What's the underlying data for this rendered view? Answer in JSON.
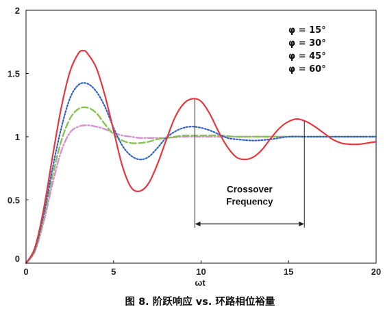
{
  "chart_data": {
    "type": "line",
    "xlabel": "ωt",
    "ylabel": "",
    "xlim": [
      0,
      20
    ],
    "ylim": [
      0,
      2
    ],
    "x_ticks": [
      "0",
      "5",
      "10",
      "15",
      "20"
    ],
    "y_ticks": [
      "0",
      "0.5",
      "1",
      "1.5",
      "2"
    ],
    "caption": "图 8. 阶跃响应 vs. 环路相位裕量",
    "legend": [
      "φ = 15°",
      "φ = 30°",
      "φ = 45°",
      "φ = 60°"
    ],
    "legend_position": "top-right",
    "grid": false,
    "series": [
      {
        "name": "φ = 15°",
        "color": "#e8363f",
        "dash": "solid",
        "x": [
          0,
          0.5,
          1,
          1.5,
          2,
          2.5,
          3,
          3.3,
          3.5,
          4,
          4.5,
          5,
          5.5,
          6,
          6.5,
          7,
          7.5,
          8,
          8.5,
          9,
          9.5,
          10,
          10.5,
          11,
          11.5,
          12,
          12.5,
          13,
          13.5,
          14,
          14.5,
          15,
          15.5,
          16,
          16.5,
          17,
          17.5,
          18,
          18.5,
          19,
          19.5,
          20
        ],
        "y": [
          0,
          0.12,
          0.42,
          0.83,
          1.22,
          1.51,
          1.66,
          1.68,
          1.66,
          1.55,
          1.33,
          1.05,
          0.77,
          0.6,
          0.57,
          0.63,
          0.78,
          0.97,
          1.15,
          1.26,
          1.3,
          1.28,
          1.18,
          1.04,
          0.92,
          0.84,
          0.82,
          0.84,
          0.9,
          0.99,
          1.07,
          1.12,
          1.14,
          1.12,
          1.08,
          1.03,
          0.98,
          0.95,
          0.94,
          0.94,
          0.95,
          0.96
        ]
      },
      {
        "name": "φ = 30°",
        "color": "#2f61c9",
        "dash": "dotted",
        "x": [
          0,
          0.5,
          1,
          1.5,
          2,
          2.5,
          3,
          3.5,
          4,
          4.5,
          5,
          5.5,
          6,
          6.5,
          7,
          7.5,
          8,
          8.5,
          9,
          9.5,
          10,
          10.5,
          11,
          11.5,
          12,
          13,
          14,
          15,
          16,
          17,
          18,
          19,
          20
        ],
        "y": [
          0,
          0.11,
          0.38,
          0.74,
          1.06,
          1.3,
          1.41,
          1.42,
          1.36,
          1.24,
          1.07,
          0.93,
          0.85,
          0.82,
          0.84,
          0.91,
          0.99,
          1.04,
          1.07,
          1.08,
          1.07,
          1.05,
          1.02,
          0.99,
          0.98,
          0.97,
          0.98,
          1.0,
          1.0,
          1.0,
          1.0,
          1.0,
          1.0
        ]
      },
      {
        "name": "φ = 45°",
        "color": "#88c24e",
        "dash": "longdash",
        "x": [
          0,
          0.5,
          1,
          1.5,
          2,
          2.5,
          3,
          3.5,
          4,
          4.5,
          5,
          5.5,
          6,
          6.5,
          7,
          7.5,
          8,
          8.5,
          9,
          9.5,
          10,
          11,
          12,
          13,
          14,
          15,
          16,
          17,
          18,
          19,
          20
        ],
        "y": [
          0,
          0.1,
          0.35,
          0.68,
          0.96,
          1.14,
          1.22,
          1.23,
          1.19,
          1.1,
          1.02,
          0.97,
          0.95,
          0.95,
          0.96,
          0.98,
          0.99,
          1.0,
          1.01,
          1.01,
          1.01,
          1.01,
          1.0,
          1.0,
          1.0,
          1.0,
          1.0,
          1.0,
          1.0,
          1.0,
          1.0
        ]
      },
      {
        "name": "φ = 60°",
        "color": "#d98fd6",
        "dash": "dashdot",
        "x": [
          0,
          0.5,
          1,
          1.5,
          2,
          2.5,
          3,
          3.5,
          4,
          4.5,
          5,
          5.5,
          6,
          6.5,
          7,
          7.5,
          8,
          9,
          10,
          11,
          12,
          13,
          14,
          15,
          16,
          17,
          18,
          19,
          20
        ],
        "y": [
          0,
          0.09,
          0.32,
          0.62,
          0.88,
          1.03,
          1.08,
          1.09,
          1.08,
          1.06,
          1.03,
          1.01,
          1.0,
          0.99,
          0.99,
          0.99,
          0.99,
          1.0,
          1.0,
          1.0,
          1.0,
          1.0,
          1.0,
          1.0,
          1.0,
          1.0,
          1.0,
          1.0,
          1.0
        ]
      }
    ],
    "annotation": {
      "lines": [
        "Crossover",
        "Frequency"
      ],
      "x_start": 9.65,
      "x_end": 15.9,
      "arrow_y": 0.31
    }
  }
}
